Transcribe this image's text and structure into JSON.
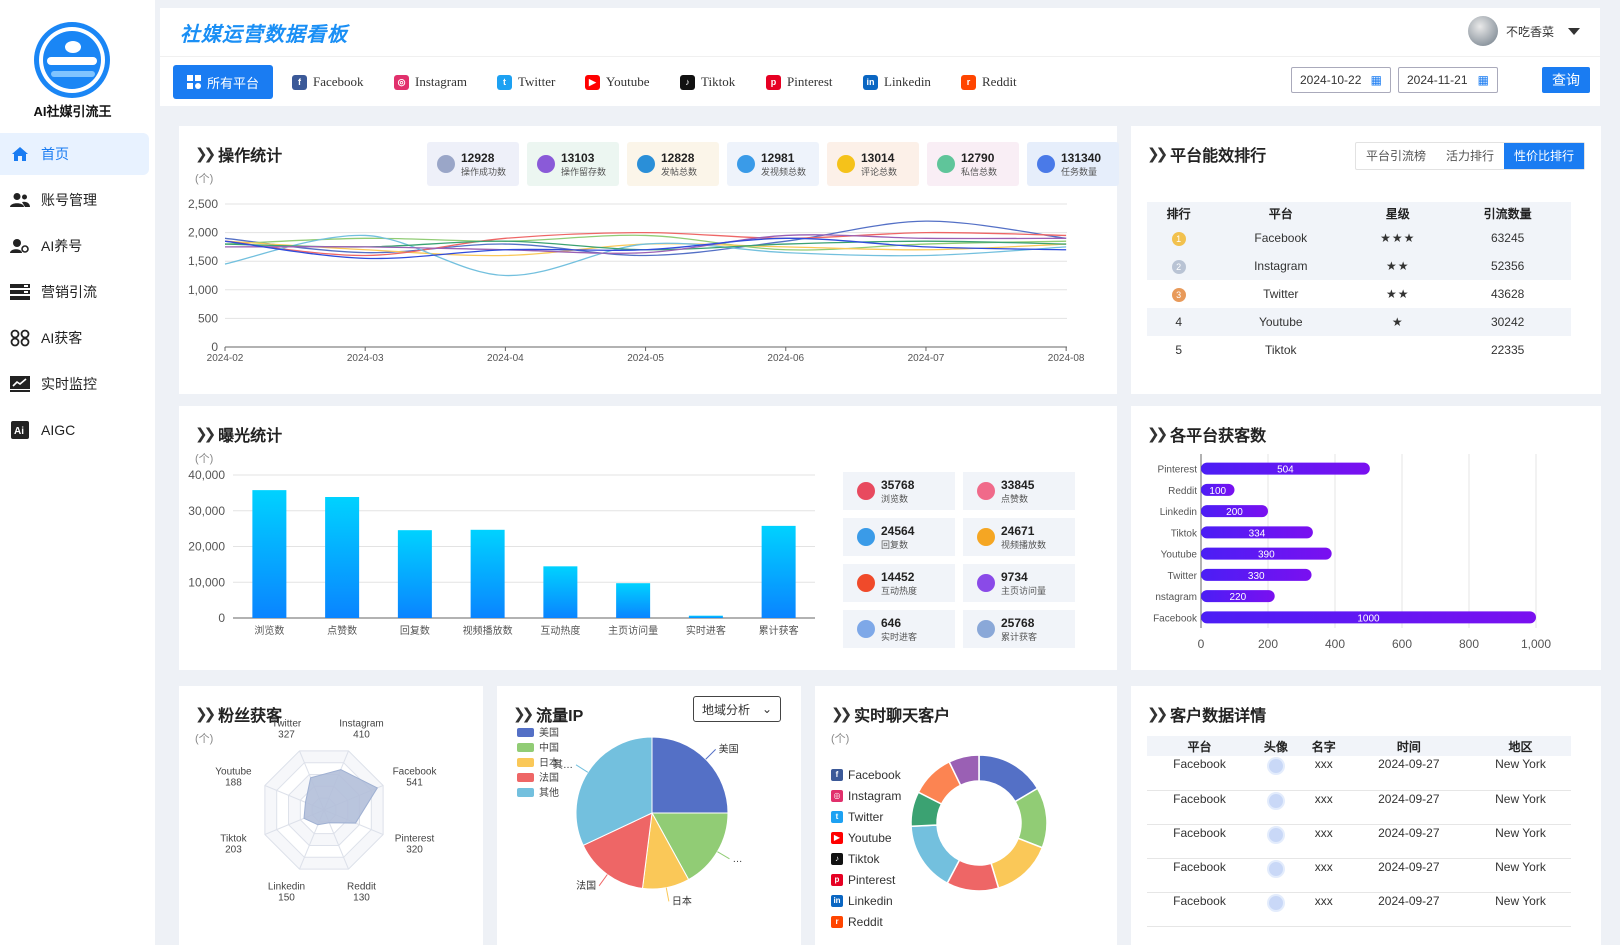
{
  "sidebar": {
    "brand": "AI社媒引流王",
    "items": [
      {
        "label": "首页",
        "icon": "home-icon"
      },
      {
        "label": "账号管理",
        "icon": "users-icon"
      },
      {
        "label": "AI养号",
        "icon": "user-settings-icon"
      },
      {
        "label": "营销引流",
        "icon": "server-icon"
      },
      {
        "label": "AI获客",
        "icon": "link-circles-icon"
      },
      {
        "label": "实时监控",
        "icon": "monitor-chart-icon"
      },
      {
        "label": "AIGC",
        "icon": "ai-icon"
      }
    ]
  },
  "header": {
    "title": "社媒运营数据看板",
    "user_name": "不吃香菜"
  },
  "platforms": {
    "all_label": "所有平台",
    "tabs": [
      "Facebook",
      "Instagram",
      "Twitter",
      "Youtube",
      "Tiktok",
      "Pinterest",
      "Linkedin",
      "Reddit"
    ],
    "start_date": "2024-10-22",
    "end_date": "2024-11-21",
    "query_label": "查询"
  },
  "colors": {
    "accent": "#1a7cf2",
    "facebook": "#3b5998",
    "instagram": "#e1306c",
    "twitter": "#1da1f2",
    "youtube": "#ff0000",
    "tiktok": "#111111",
    "pinterest": "#e60023",
    "linkedin": "#0a66c2",
    "reddit": "#ff4500"
  },
  "ops": {
    "title": "操作统计",
    "unit": "(个)",
    "cards": [
      {
        "value": "12928",
        "label": "操作成功数",
        "bg": "#eef0f9",
        "color": "#9aa6c8"
      },
      {
        "value": "13103",
        "label": "操作留存数",
        "bg": "#ecf6f1",
        "color": "#8a5ad8"
      },
      {
        "value": "12828",
        "label": "发帖总数",
        "bg": "#fbf5e9",
        "color": "#2a8fd8"
      },
      {
        "value": "12981",
        "label": "发视频总数",
        "bg": "#eef3fb",
        "color": "#3a9be8"
      },
      {
        "value": "13014",
        "label": "评论总数",
        "bg": "#fcf0e8",
        "color": "#f5c21a"
      },
      {
        "value": "12790",
        "label": "私信总数",
        "bg": "#f9eef5",
        "color": "#5fc59a"
      },
      {
        "value": "131340",
        "label": "任务数量",
        "bg": "#e6eefb",
        "color": "#4a7ae8"
      }
    ]
  },
  "rank": {
    "title": "平台能效排行",
    "tabs": [
      "平台引流榜",
      "活力排行",
      "性价比排行"
    ],
    "headers": [
      "排行",
      "平台",
      "星级",
      "引流数量"
    ],
    "rows": [
      {
        "rank": "1",
        "platform": "Facebook",
        "stars": "★★★",
        "count": "63245"
      },
      {
        "rank": "2",
        "platform": "Instagram",
        "stars": "★★",
        "count": "52356"
      },
      {
        "rank": "3",
        "platform": "Twitter",
        "stars": "★★",
        "count": "43628"
      },
      {
        "rank": "4",
        "platform": "Youtube",
        "stars": "★",
        "count": "30242"
      },
      {
        "rank": "5",
        "platform": "Tiktok",
        "stars": "",
        "count": "22335"
      }
    ]
  },
  "exposure": {
    "title": "曝光统计",
    "unit": "(个)",
    "cards": [
      {
        "value": "35768",
        "label": "浏览数",
        "color": "#e84a5f"
      },
      {
        "value": "33845",
        "label": "点赞数",
        "color": "#f06a8a"
      },
      {
        "value": "24564",
        "label": "回复数",
        "color": "#3a9be8"
      },
      {
        "value": "24671",
        "label": "视频播放数",
        "color": "#f5a623"
      },
      {
        "value": "14452",
        "label": "互动热度",
        "color": "#f04a2a"
      },
      {
        "value": "9734",
        "label": "主页访问量",
        "color": "#8a4ae8"
      },
      {
        "value": "646",
        "label": "实时进客",
        "color": "#7ea8e8"
      },
      {
        "value": "25768",
        "label": "累计获客",
        "color": "#8aa8d8"
      }
    ]
  },
  "acquire": {
    "title": "各平台获客数"
  },
  "fans": {
    "title": "粉丝获客",
    "unit": "(个)"
  },
  "traffic": {
    "title": "流量IP",
    "select_value": "地域分析"
  },
  "chat": {
    "title": "实时聊天客户",
    "unit": "(个)",
    "list": [
      "Facebook",
      "Instagram",
      "Twitter",
      "Youtube",
      "Tiktok",
      "Pinterest",
      "Linkedin",
      "Reddit"
    ]
  },
  "customers": {
    "title": "客户数据详情",
    "headers": [
      "平台",
      "头像",
      "名字",
      "时间",
      "地区"
    ],
    "rows": [
      {
        "platform": "Facebook",
        "name": "xxx",
        "time": "2024-09-27",
        "region": "New York"
      },
      {
        "platform": "Facebook",
        "name": "xxx",
        "time": "2024-09-27",
        "region": "New York"
      },
      {
        "platform": "Facebook",
        "name": "xxx",
        "time": "2024-09-27",
        "region": "New York"
      },
      {
        "platform": "Facebook",
        "name": "xxx",
        "time": "2024-09-27",
        "region": "New York"
      },
      {
        "platform": "Facebook",
        "name": "xxx",
        "time": "2024-09-27",
        "region": "New York"
      }
    ]
  },
  "chart_data": [
    {
      "type": "line",
      "x": [
        "2024-02",
        "2024-03",
        "2024-04",
        "2024-05",
        "2024-06",
        "2024-07",
        "2024-08"
      ],
      "ylim": [
        0,
        2500
      ],
      "yticks": [
        "0",
        "500",
        "1,000",
        "1,500",
        "2,000",
        "2,500"
      ],
      "grid": true,
      "series": [
        {
          "color": "#5470c6",
          "values": [
            1900,
            1650,
            1800,
            1600,
            1850,
            2200,
            1900
          ]
        },
        {
          "color": "#91cc75",
          "values": [
            1800,
            1900,
            1850,
            1950,
            1700,
            1800,
            1850
          ]
        },
        {
          "color": "#fac858",
          "values": [
            1850,
            1700,
            1600,
            1800,
            1750,
            1700,
            1800
          ]
        },
        {
          "color": "#ee6666",
          "values": [
            1850,
            1600,
            1900,
            2000,
            1900,
            2000,
            1950
          ]
        },
        {
          "color": "#73c0de",
          "values": [
            1450,
            1950,
            1250,
            1800,
            1650,
            1600,
            1750
          ]
        },
        {
          "color": "#3ba272",
          "values": [
            1800,
            1750,
            1850,
            1700,
            1800,
            1850,
            1800
          ]
        },
        {
          "color": "#9a60b4",
          "values": [
            1750,
            1750,
            1700,
            1650,
            1950,
            1900,
            1900
          ]
        },
        {
          "color": "#2f4bdb",
          "values": [
            1850,
            1550,
            1700,
            1700,
            1900,
            1750,
            1700
          ]
        }
      ]
    },
    {
      "type": "bar",
      "categories": [
        "浏览数",
        "点赞数",
        "回复数",
        "视频播放数",
        "互动热度",
        "主页访问量",
        "实时进客",
        "累计获客"
      ],
      "values": [
        35768,
        33845,
        24564,
        24671,
        14452,
        9734,
        646,
        25768
      ],
      "ylim": [
        0,
        40000
      ],
      "yticks": [
        "0",
        "10,000",
        "20,000",
        "30,000",
        "40,000"
      ],
      "grid": true
    },
    {
      "type": "bar",
      "orientation": "horizontal",
      "categories": [
        "Pinterest",
        "Reddit",
        "Linkedin",
        "Tiktok",
        "Youtube",
        "Twitter",
        "nstagram",
        "Facebook"
      ],
      "values": [
        504,
        100,
        200,
        334,
        390,
        330,
        220,
        1000
      ],
      "xlim": [
        0,
        1000
      ],
      "xticks": [
        "0",
        "200",
        "400",
        "600",
        "800",
        "1,000"
      ],
      "grid": true
    },
    {
      "type": "radar",
      "indicators": [
        {
          "name": "Instagram",
          "value": 410
        },
        {
          "name": "Facebook",
          "value": 541
        },
        {
          "name": "Pinterest",
          "value": 320
        },
        {
          "name": "Reddit",
          "value": 130
        },
        {
          "name": "Linkedin",
          "value": 150
        },
        {
          "name": "Tiktok",
          "value": 203
        },
        {
          "name": "Youtube",
          "value": 188
        },
        {
          "name": "Twitter",
          "value": 327
        }
      ],
      "max": 600
    },
    {
      "type": "pie",
      "slices": [
        {
          "label": "美国",
          "value": 25,
          "color": "#5470c6"
        },
        {
          "label": "中国",
          "value": 17,
          "color": "#91cc75"
        },
        {
          "label": "日本",
          "value": 10,
          "color": "#fac858"
        },
        {
          "label": "法国",
          "value": 16,
          "color": "#ee6666"
        },
        {
          "label": "其他",
          "value": 32,
          "color": "#73c0de"
        }
      ],
      "outside_labels": [
        "美国",
        "…",
        "日本",
        "法国",
        "其…"
      ]
    },
    {
      "type": "pie",
      "donut": true,
      "slices": [
        {
          "value": 16,
          "color": "#5470c6"
        },
        {
          "value": 14,
          "color": "#91cc75"
        },
        {
          "value": 14,
          "color": "#fac858"
        },
        {
          "value": 12,
          "color": "#ee6666"
        },
        {
          "value": 16,
          "color": "#73c0de"
        },
        {
          "value": 8,
          "color": "#3ba272"
        },
        {
          "value": 10,
          "color": "#fc8452"
        },
        {
          "value": 7,
          "color": "#9a60b4"
        }
      ]
    }
  ]
}
